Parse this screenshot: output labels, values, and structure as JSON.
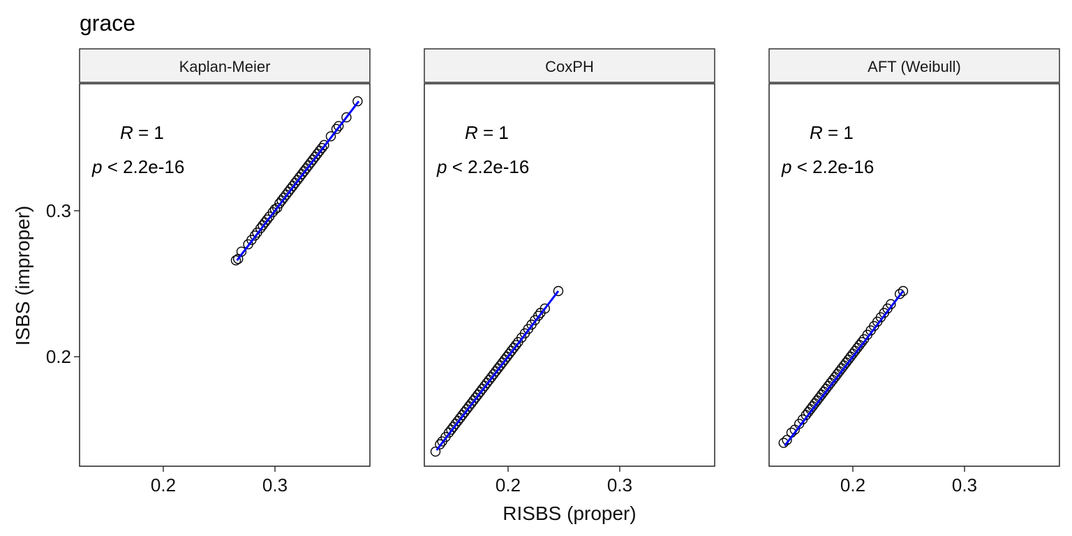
{
  "chart_data": {
    "type": "scatter",
    "title": "grace",
    "xlabel": "RISBS (proper)",
    "ylabel": "ISBS (improper)",
    "xlim": [
      0.125,
      0.385
    ],
    "ylim": [
      0.125,
      0.387
    ],
    "x_ticks": [
      "0.2",
      "0.3"
    ],
    "x_tick_values": [
      0.2,
      0.3
    ],
    "y_ticks": [
      "0.2",
      "0.3"
    ],
    "y_tick_values": [
      0.2,
      0.3
    ],
    "grid": false,
    "point_style": {
      "shape": "open-circle",
      "stroke": "#000000"
    },
    "fit_line_color": "#0000ff",
    "strip_fill": "#f2f2f2",
    "panels": [
      {
        "name": "Kaplan-Meier",
        "stat_r": "1",
        "stat_p": "< 2.2e-16",
        "fit": {
          "x": [
            0.266,
            0.375
          ],
          "y": [
            0.266,
            0.375
          ]
        },
        "points": [
          [
            0.265,
            0.266
          ],
          [
            0.267,
            0.267
          ],
          [
            0.27,
            0.272
          ],
          [
            0.276,
            0.277
          ],
          [
            0.279,
            0.28
          ],
          [
            0.282,
            0.283
          ],
          [
            0.284,
            0.285
          ],
          [
            0.287,
            0.288
          ],
          [
            0.289,
            0.29
          ],
          [
            0.291,
            0.292
          ],
          [
            0.293,
            0.294
          ],
          [
            0.295,
            0.296
          ],
          [
            0.298,
            0.299
          ],
          [
            0.3,
            0.301
          ],
          [
            0.302,
            0.302
          ],
          [
            0.304,
            0.305
          ],
          [
            0.306,
            0.307
          ],
          [
            0.308,
            0.309
          ],
          [
            0.31,
            0.311
          ],
          [
            0.312,
            0.313
          ],
          [
            0.314,
            0.315
          ],
          [
            0.316,
            0.317
          ],
          [
            0.318,
            0.319
          ],
          [
            0.32,
            0.321
          ],
          [
            0.322,
            0.323
          ],
          [
            0.324,
            0.325
          ],
          [
            0.326,
            0.327
          ],
          [
            0.328,
            0.329
          ],
          [
            0.33,
            0.331
          ],
          [
            0.332,
            0.333
          ],
          [
            0.334,
            0.335
          ],
          [
            0.336,
            0.337
          ],
          [
            0.338,
            0.339
          ],
          [
            0.34,
            0.341
          ],
          [
            0.342,
            0.343
          ],
          [
            0.344,
            0.345
          ],
          [
            0.35,
            0.351
          ],
          [
            0.355,
            0.356
          ],
          [
            0.357,
            0.358
          ],
          [
            0.364,
            0.364
          ],
          [
            0.374,
            0.375
          ]
        ]
      },
      {
        "name": "CoxPH",
        "stat_r": "1",
        "stat_p": "< 2.2e-16",
        "fit": {
          "x": [
            0.136,
            0.245
          ],
          "y": [
            0.136,
            0.245
          ]
        },
        "points": [
          [
            0.135,
            0.135
          ],
          [
            0.139,
            0.14
          ],
          [
            0.141,
            0.142
          ],
          [
            0.144,
            0.145
          ],
          [
            0.147,
            0.148
          ],
          [
            0.149,
            0.15
          ],
          [
            0.151,
            0.152
          ],
          [
            0.153,
            0.154
          ],
          [
            0.155,
            0.156
          ],
          [
            0.157,
            0.158
          ],
          [
            0.159,
            0.16
          ],
          [
            0.161,
            0.162
          ],
          [
            0.163,
            0.164
          ],
          [
            0.165,
            0.166
          ],
          [
            0.167,
            0.168
          ],
          [
            0.169,
            0.17
          ],
          [
            0.171,
            0.172
          ],
          [
            0.173,
            0.174
          ],
          [
            0.175,
            0.176
          ],
          [
            0.177,
            0.178
          ],
          [
            0.179,
            0.18
          ],
          [
            0.181,
            0.182
          ],
          [
            0.183,
            0.184
          ],
          [
            0.185,
            0.186
          ],
          [
            0.187,
            0.188
          ],
          [
            0.189,
            0.19
          ],
          [
            0.191,
            0.192
          ],
          [
            0.193,
            0.194
          ],
          [
            0.195,
            0.196
          ],
          [
            0.197,
            0.198
          ],
          [
            0.199,
            0.2
          ],
          [
            0.201,
            0.202
          ],
          [
            0.203,
            0.204
          ],
          [
            0.205,
            0.206
          ],
          [
            0.207,
            0.208
          ],
          [
            0.209,
            0.21
          ],
          [
            0.212,
            0.213
          ],
          [
            0.215,
            0.216
          ],
          [
            0.218,
            0.219
          ],
          [
            0.221,
            0.222
          ],
          [
            0.224,
            0.225
          ],
          [
            0.227,
            0.228
          ],
          [
            0.229,
            0.23
          ],
          [
            0.233,
            0.233
          ],
          [
            0.245,
            0.245
          ]
        ]
      },
      {
        "name": "AFT (Weibull)",
        "stat_r": "1",
        "stat_p": "< 2.2e-16",
        "fit": {
          "x": [
            0.139,
            0.245
          ],
          "y": [
            0.139,
            0.245
          ]
        },
        "points": [
          [
            0.138,
            0.141
          ],
          [
            0.141,
            0.143
          ],
          [
            0.145,
            0.148
          ],
          [
            0.148,
            0.15
          ],
          [
            0.152,
            0.154
          ],
          [
            0.155,
            0.157
          ],
          [
            0.158,
            0.16
          ],
          [
            0.16,
            0.162
          ],
          [
            0.162,
            0.164
          ],
          [
            0.164,
            0.166
          ],
          [
            0.166,
            0.168
          ],
          [
            0.168,
            0.17
          ],
          [
            0.17,
            0.172
          ],
          [
            0.172,
            0.174
          ],
          [
            0.174,
            0.176
          ],
          [
            0.176,
            0.178
          ],
          [
            0.178,
            0.18
          ],
          [
            0.18,
            0.182
          ],
          [
            0.182,
            0.184
          ],
          [
            0.184,
            0.186
          ],
          [
            0.186,
            0.188
          ],
          [
            0.188,
            0.19
          ],
          [
            0.19,
            0.192
          ],
          [
            0.192,
            0.194
          ],
          [
            0.194,
            0.196
          ],
          [
            0.196,
            0.198
          ],
          [
            0.198,
            0.2
          ],
          [
            0.2,
            0.202
          ],
          [
            0.202,
            0.204
          ],
          [
            0.204,
            0.206
          ],
          [
            0.206,
            0.208
          ],
          [
            0.208,
            0.21
          ],
          [
            0.21,
            0.212
          ],
          [
            0.213,
            0.215
          ],
          [
            0.216,
            0.218
          ],
          [
            0.219,
            0.221
          ],
          [
            0.222,
            0.224
          ],
          [
            0.225,
            0.227
          ],
          [
            0.228,
            0.23
          ],
          [
            0.231,
            0.233
          ],
          [
            0.234,
            0.236
          ],
          [
            0.242,
            0.243
          ],
          [
            0.245,
            0.245
          ]
        ]
      }
    ]
  }
}
